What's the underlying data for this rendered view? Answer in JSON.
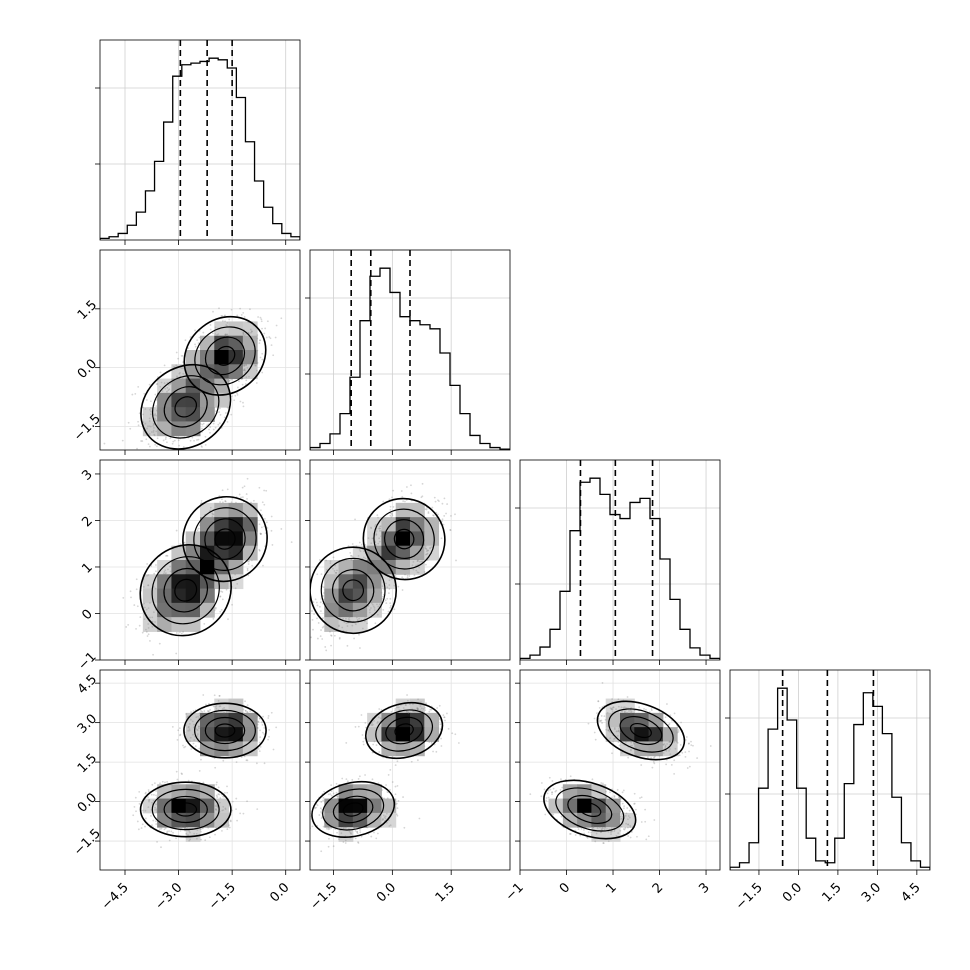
{
  "chart_data": {
    "type": "corner",
    "title": "",
    "grid": true,
    "quantile_lines": "dashed",
    "parameters": [
      {
        "range": [
          -5.2,
          0.4
        ],
        "ticks": [
          -4.5,
          -3.0,
          -1.5,
          0.0
        ],
        "tick_labels": [
          "−4.5",
          "−3.0",
          "−1.5",
          "0.0"
        ]
      },
      {
        "range": [
          -2.1,
          3.0
        ],
        "ticks": [
          -1.5,
          0.0,
          1.5
        ],
        "tick_labels": [
          "−1.5",
          "0.0",
          "1.5"
        ]
      },
      {
        "range": [
          -1.0,
          3.3
        ],
        "ticks": [
          -1,
          0,
          1,
          2,
          3
        ],
        "tick_labels": [
          "−1",
          "0",
          "1",
          "2",
          "3"
        ]
      },
      {
        "range": [
          -2.6,
          5.0
        ],
        "ticks": [
          -1.5,
          0.0,
          1.5,
          3.0,
          4.5
        ],
        "tick_labels": [
          "−1.5",
          "0.0",
          "1.5",
          "3.0",
          "4.5"
        ]
      }
    ],
    "histograms": [
      {
        "param": 0,
        "edges_range": [
          -5.2,
          0.4
        ],
        "counts": [
          1,
          2,
          4,
          9,
          17,
          30,
          48,
          72,
          100,
          107,
          108,
          109,
          111,
          110,
          105,
          87,
          60,
          36,
          20,
          10,
          4,
          2
        ],
        "quantiles": [
          -2.95,
          -2.2,
          -1.5
        ]
      },
      {
        "param": 1,
        "edges_range": [
          -2.1,
          3.0
        ],
        "counts": [
          3,
          8,
          20,
          45,
          90,
          160,
          215,
          225,
          195,
          165,
          160,
          155,
          150,
          120,
          80,
          45,
          18,
          8,
          3,
          1
        ],
        "quantiles": [
          -1.05,
          -0.55,
          0.45
        ]
      },
      {
        "param": 2,
        "edges_range": [
          -1.0,
          3.3
        ],
        "counts": [
          2,
          6,
          16,
          38,
          85,
          160,
          220,
          225,
          205,
          180,
          175,
          195,
          200,
          175,
          125,
          75,
          38,
          15,
          6,
          2
        ],
        "quantiles": [
          0.3,
          1.05,
          1.85
        ]
      },
      {
        "param": 3,
        "edges_range": [
          -2.6,
          5.0
        ],
        "counts": [
          3,
          8,
          30,
          90,
          155,
          200,
          165,
          90,
          35,
          10,
          8,
          35,
          95,
          160,
          195,
          180,
          150,
          80,
          30,
          10,
          3
        ],
        "quantiles": [
          -0.6,
          1.1,
          2.85
        ]
      }
    ],
    "mixture_components": [
      {
        "means": [
          -2.8,
          -1.0,
          0.5,
          -0.3
        ]
      },
      {
        "means": [
          -1.7,
          0.3,
          1.6,
          2.7
        ]
      }
    ]
  }
}
